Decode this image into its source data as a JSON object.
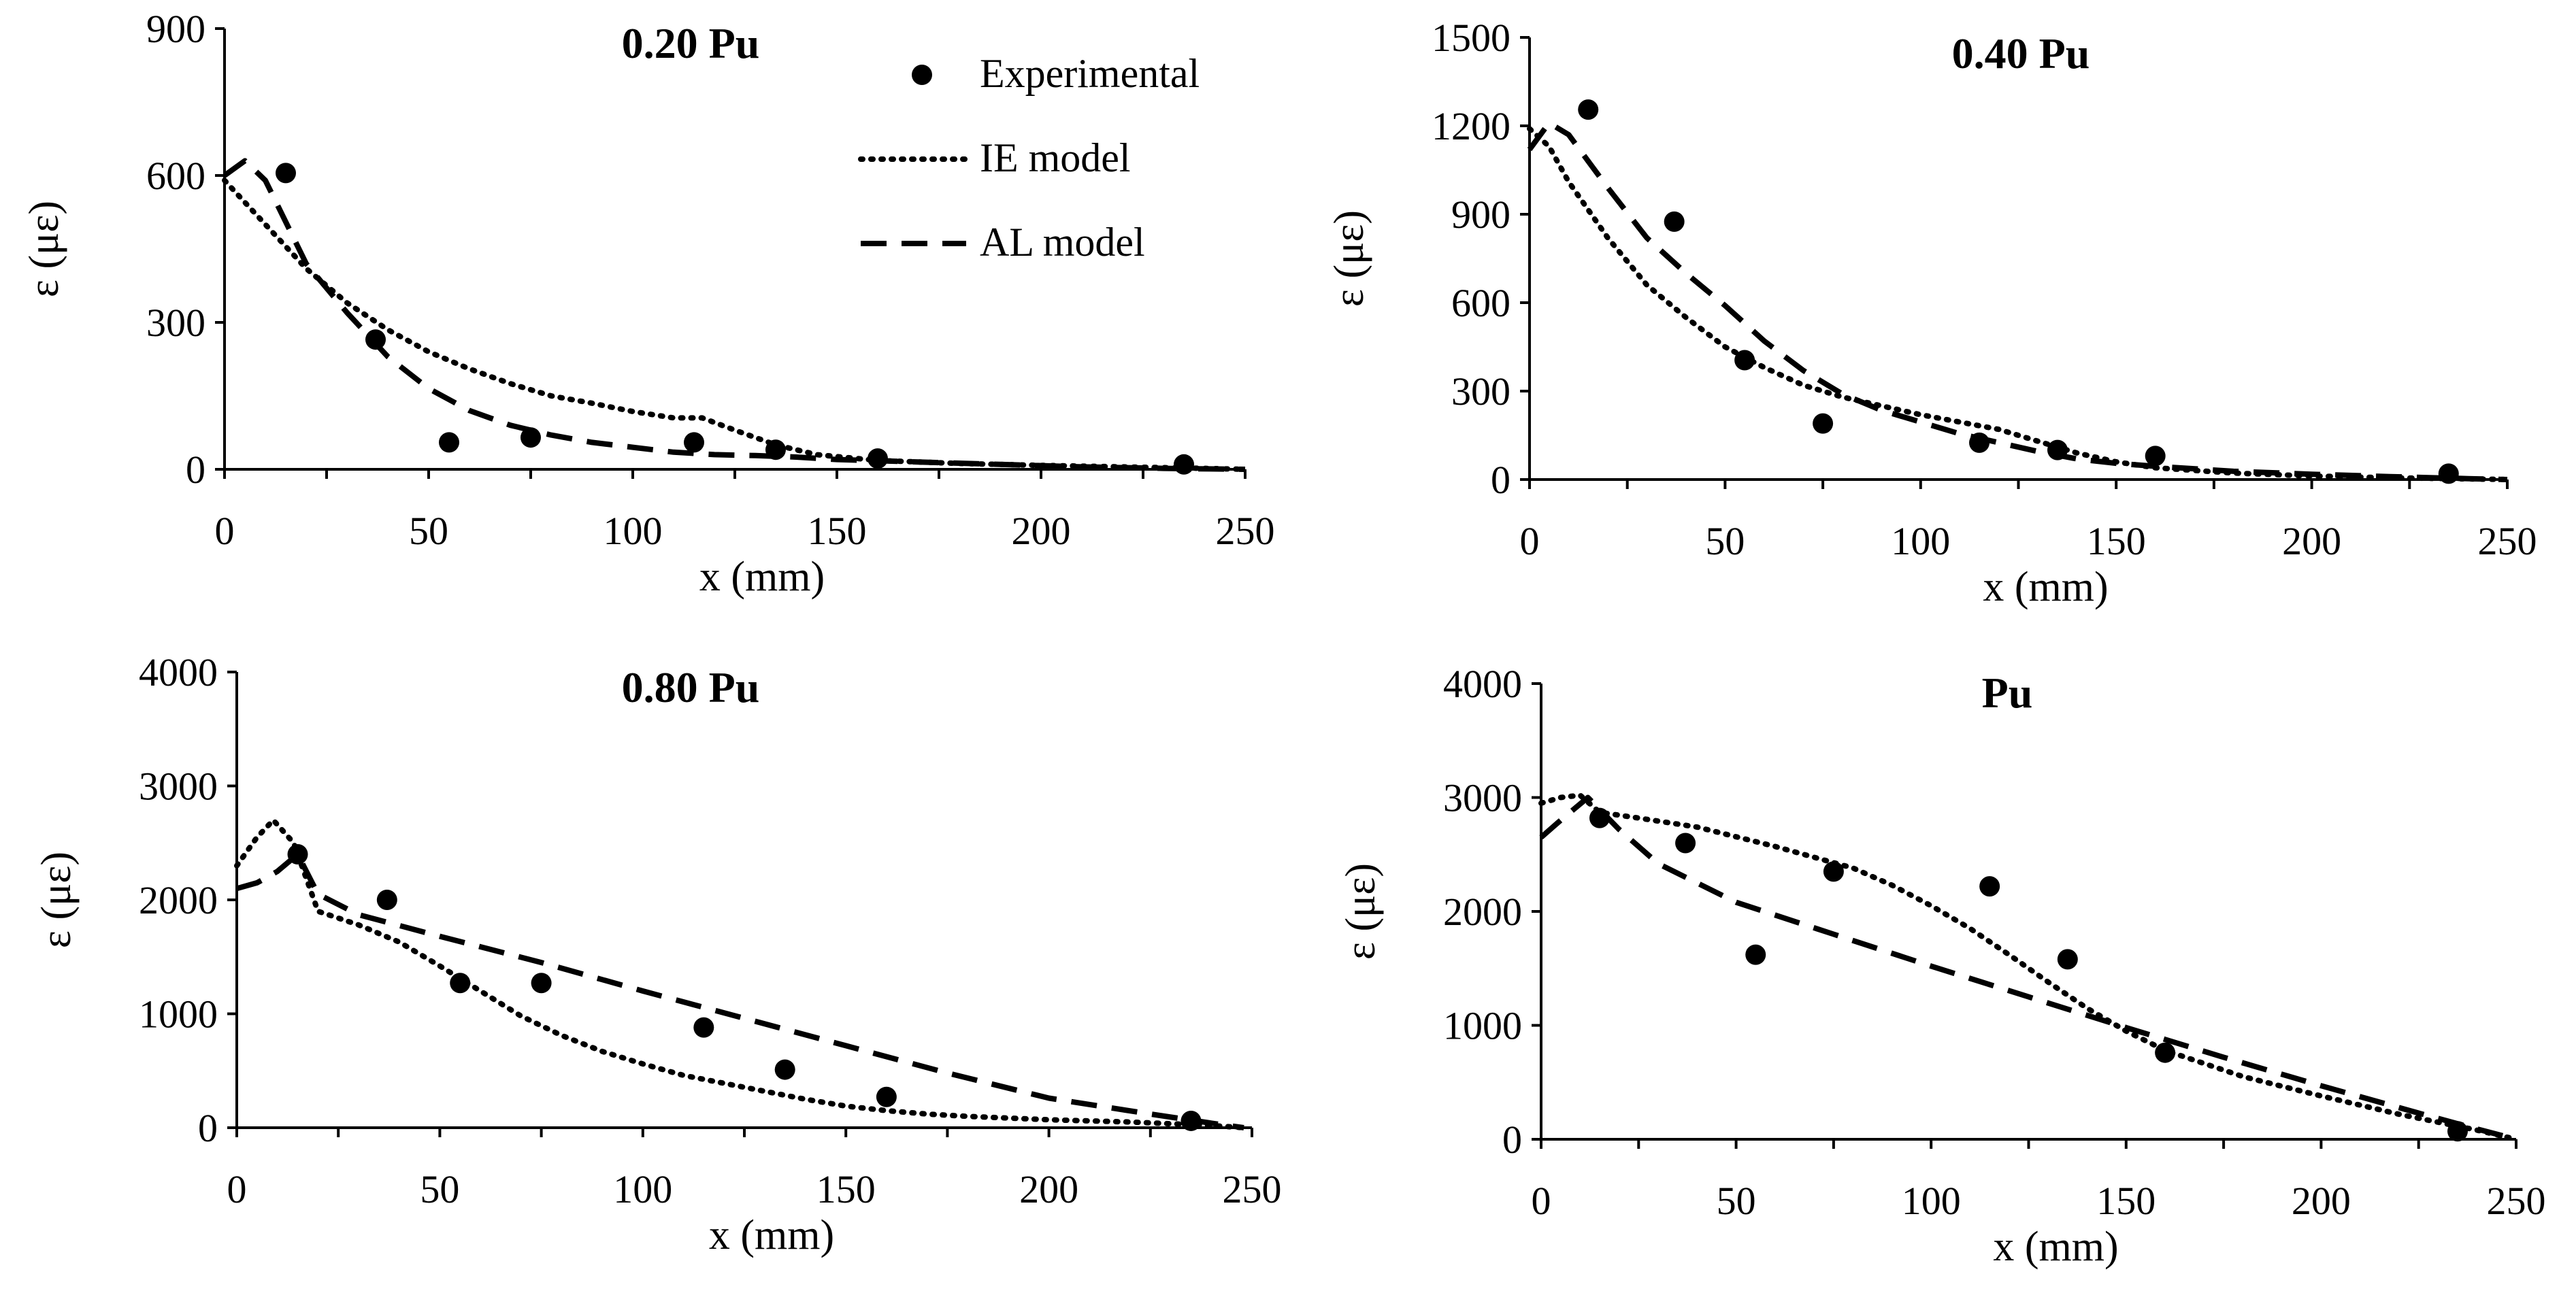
{
  "chart_data": [
    {
      "type": "line",
      "title": "0.20 Pu",
      "xlabel": "x (mm)",
      "ylabel": "ε (με)",
      "xlim": [
        0,
        250
      ],
      "ylim": [
        0,
        900
      ],
      "xticks": [
        "0",
        "50",
        "100",
        "150",
        "200",
        "250"
      ],
      "yticks": [
        "0",
        "300",
        "600",
        "900"
      ],
      "grid": false,
      "legend": {
        "position": "top-right",
        "entries": [
          "Experimental",
          "IE model",
          "AL model"
        ]
      },
      "series": [
        {
          "name": "Experimental",
          "style": "markers",
          "x": [
            15,
            37,
            55,
            75,
            115,
            135,
            160,
            235
          ],
          "y": [
            605,
            265,
            55,
            65,
            55,
            40,
            22,
            10
          ]
        },
        {
          "name": "IE model",
          "style": "dotted",
          "x": [
            0,
            10,
            20,
            30,
            40,
            50,
            60,
            70,
            80,
            90,
            100,
            110,
            117,
            125,
            135,
            145,
            160,
            180,
            200,
            220,
            240,
            250
          ],
          "y": [
            590,
            500,
            410,
            340,
            285,
            240,
            205,
            175,
            150,
            135,
            118,
            105,
            105,
            80,
            50,
            30,
            18,
            12,
            8,
            5,
            2,
            0
          ]
        },
        {
          "name": "AL model",
          "style": "dashed",
          "x": [
            0,
            5,
            10,
            20,
            30,
            40,
            50,
            60,
            70,
            80,
            90,
            100,
            110,
            120,
            130,
            140,
            150,
            170,
            190,
            210,
            230,
            250
          ],
          "y": [
            600,
            630,
            590,
            420,
            320,
            230,
            165,
            120,
            90,
            70,
            55,
            45,
            35,
            30,
            28,
            25,
            20,
            15,
            10,
            5,
            2,
            0
          ]
        }
      ]
    },
    {
      "type": "line",
      "title": "0.40 Pu",
      "xlabel": "x (mm)",
      "ylabel": "ε (με)",
      "xlim": [
        0,
        250
      ],
      "ylim": [
        0,
        1500
      ],
      "xticks": [
        "0",
        "50",
        "100",
        "150",
        "200",
        "250"
      ],
      "yticks": [
        "0",
        "300",
        "600",
        "900",
        "1200",
        "1500"
      ],
      "grid": false,
      "series": [
        {
          "name": "Experimental",
          "style": "markers",
          "x": [
            15,
            37,
            55,
            75,
            115,
            135,
            160,
            235
          ],
          "y": [
            1255,
            875,
            405,
            190,
            125,
            100,
            80,
            20
          ]
        },
        {
          "name": "IE model",
          "style": "dotted",
          "x": [
            0,
            5,
            10,
            20,
            30,
            40,
            50,
            60,
            70,
            80,
            90,
            100,
            110,
            120,
            130,
            140,
            150,
            160,
            180,
            200,
            220,
            240,
            250
          ],
          "y": [
            1190,
            1130,
            1010,
            820,
            660,
            550,
            450,
            380,
            320,
            280,
            250,
            220,
            195,
            170,
            130,
            90,
            60,
            40,
            22,
            12,
            6,
            2,
            0
          ]
        },
        {
          "name": "AL model",
          "style": "dashed",
          "x": [
            0,
            5,
            10,
            20,
            30,
            40,
            50,
            60,
            70,
            80,
            90,
            100,
            110,
            120,
            130,
            140,
            150,
            160,
            180,
            200,
            220,
            240,
            250
          ],
          "y": [
            1120,
            1210,
            1170,
            990,
            820,
            700,
            590,
            470,
            370,
            290,
            235,
            195,
            155,
            125,
            95,
            70,
            55,
            45,
            28,
            18,
            10,
            3,
            0
          ]
        }
      ]
    },
    {
      "type": "line",
      "title": "0.80 Pu",
      "xlabel": "x (mm)",
      "ylabel": "ε (με)",
      "xlim": [
        0,
        250
      ],
      "ylim": [
        0,
        4000
      ],
      "xticks": [
        "0",
        "50",
        "100",
        "150",
        "200",
        "250"
      ],
      "yticks": [
        "0",
        "1000",
        "2000",
        "3000",
        "4000"
      ],
      "grid": false,
      "series": [
        {
          "name": "Experimental",
          "style": "markers",
          "x": [
            15,
            37,
            55,
            75,
            115,
            135,
            160,
            235
          ],
          "y": [
            2400,
            2000,
            1270,
            1270,
            880,
            510,
            270,
            60
          ]
        },
        {
          "name": "IE model",
          "style": "dotted",
          "x": [
            0,
            5,
            9,
            14,
            20,
            30,
            40,
            50,
            60,
            70,
            80,
            90,
            100,
            110,
            120,
            130,
            140,
            150,
            160,
            170,
            180,
            200,
            220,
            240,
            248
          ],
          "y": [
            2300,
            2550,
            2700,
            2500,
            1900,
            1780,
            1630,
            1420,
            1200,
            980,
            810,
            670,
            560,
            460,
            390,
            320,
            250,
            190,
            150,
            120,
            100,
            70,
            50,
            20,
            0
          ]
        },
        {
          "name": "AL model",
          "style": "dashed",
          "x": [
            0,
            5,
            10,
            15,
            20,
            30,
            50,
            75,
            100,
            125,
            150,
            175,
            200,
            225,
            240,
            248
          ],
          "y": [
            2100,
            2150,
            2250,
            2400,
            2050,
            1870,
            1680,
            1450,
            1200,
            960,
            720,
            480,
            260,
            120,
            40,
            0
          ]
        }
      ]
    },
    {
      "type": "line",
      "title": "Pu",
      "xlabel": "x (mm)",
      "ylabel": "ε (με)",
      "xlim": [
        0,
        250
      ],
      "ylim": [
        0,
        4000
      ],
      "xticks": [
        "0",
        "50",
        "100",
        "150",
        "200",
        "250"
      ],
      "yticks": [
        "0",
        "1000",
        "2000",
        "3000",
        "4000"
      ],
      "grid": false,
      "series": [
        {
          "name": "Experimental",
          "style": "markers",
          "x": [
            15,
            37,
            55,
            75,
            115,
            135,
            160,
            235
          ],
          "y": [
            2820,
            2600,
            1620,
            2350,
            2220,
            1580,
            760,
            70
          ]
        },
        {
          "name": "IE model",
          "style": "dotted",
          "x": [
            0,
            5,
            10,
            15,
            25,
            40,
            60,
            80,
            90,
            100,
            110,
            120,
            130,
            140,
            150,
            160,
            180,
            200,
            220,
            240,
            250
          ],
          "y": [
            2950,
            3000,
            3020,
            2870,
            2820,
            2740,
            2570,
            2380,
            2230,
            2050,
            1850,
            1620,
            1380,
            1150,
            950,
            780,
            550,
            380,
            220,
            80,
            0
          ]
        },
        {
          "name": "AL model",
          "style": "dashed",
          "x": [
            0,
            5,
            12,
            20,
            30,
            50,
            75,
            100,
            125,
            150,
            175,
            200,
            225,
            240,
            250
          ],
          "y": [
            2650,
            2800,
            3000,
            2720,
            2420,
            2080,
            1800,
            1520,
            1250,
            980,
            720,
            470,
            230,
            90,
            0
          ]
        }
      ]
    }
  ]
}
